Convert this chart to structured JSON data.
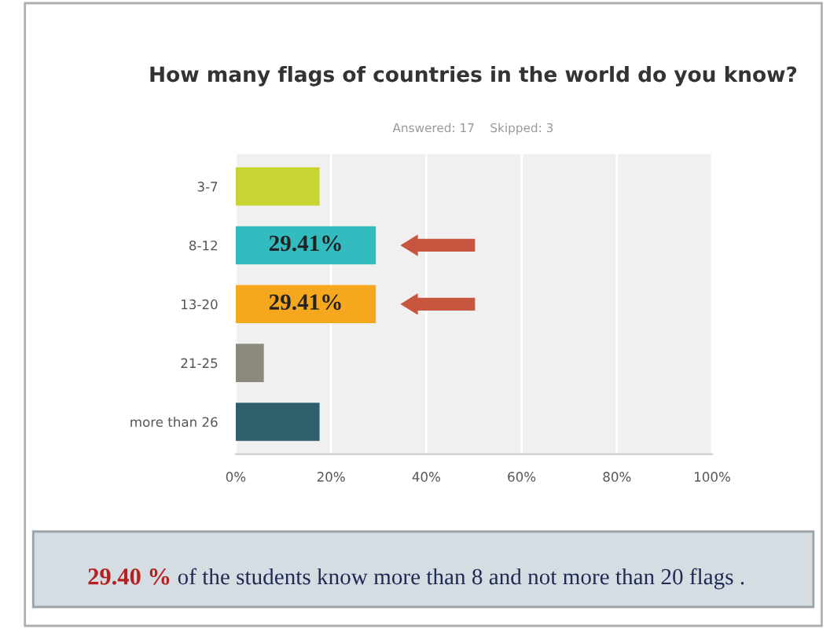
{
  "chart_data": {
    "type": "bar",
    "orientation": "horizontal",
    "title": "How many flags of countries in the world do you know?",
    "subtitle": "Answered: 17    Skipped: 3",
    "categories": [
      "3-7",
      "8-12",
      "13-20",
      "21-25",
      "more than 26"
    ],
    "values": [
      17.6,
      29.41,
      29.41,
      5.9,
      17.6
    ],
    "colors": [
      "#c9d433",
      "#33bcc0",
      "#f5a81d",
      "#8c8a7c",
      "#2f5f6d"
    ],
    "value_labels": [
      null,
      "29.41%",
      "29.41%",
      null,
      null
    ],
    "xlim": [
      0,
      100
    ],
    "xticks": [
      {
        "value": 0,
        "label": "0%"
      },
      {
        "value": 20,
        "label": "20%"
      },
      {
        "value": 40,
        "label": "40%"
      },
      {
        "value": 60,
        "label": "60%"
      },
      {
        "value": 80,
        "label": "80%"
      },
      {
        "value": 100,
        "label": "100%"
      }
    ],
    "grid": "x",
    "legend": false,
    "annotations": [
      "29.40 %",
      "of the students know more than 8 and not more than 20 flags ."
    ]
  }
}
